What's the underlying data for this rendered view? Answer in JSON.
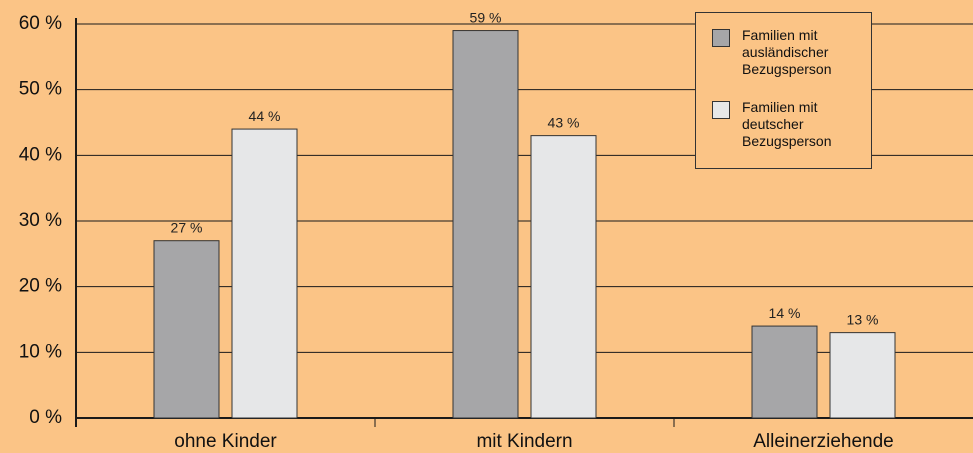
{
  "chart_data": {
    "type": "bar",
    "categories": [
      "ohne Kinder",
      "mit Kindern",
      "Alleinerziehende"
    ],
    "series": [
      {
        "name": "Familien mit ausländischer Bezugsperson",
        "values": [
          27,
          59,
          14
        ],
        "color": "#a6a6a8"
      },
      {
        "name": "Familien mit deutscher Bezugsperson",
        "values": [
          44,
          43,
          13
        ],
        "color": "#e6e7e8"
      }
    ],
    "value_labels": [
      [
        "27 %",
        "59 %",
        "14 %"
      ],
      [
        "44 %",
        "43 %",
        "13 %"
      ]
    ],
    "yticks": [
      "0 %",
      "10 %",
      "20 %",
      "30 %",
      "40 %",
      "50 %",
      "60 %"
    ],
    "ylim": [
      0,
      60
    ],
    "grid": true,
    "legend_position": "top-right",
    "title": "",
    "xlabel": "",
    "ylabel": ""
  },
  "legend": {
    "items": [
      {
        "label": "Familien mit\nausländischer\nBezugsperson"
      },
      {
        "label": "Familien mit\ndeutscher\nBezugsperson"
      }
    ]
  }
}
